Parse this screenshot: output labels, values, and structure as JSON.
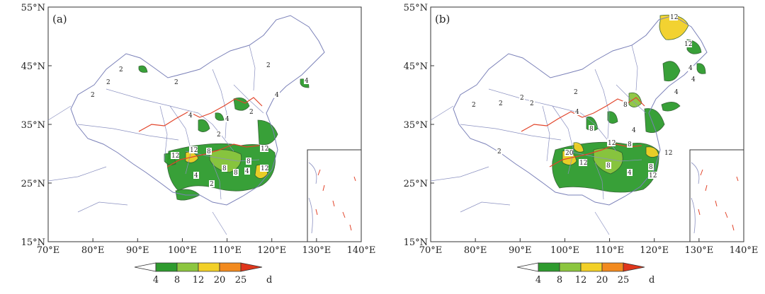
{
  "panels": [
    {
      "id": "a",
      "label": "(a)",
      "x_ticks": [
        "70°E",
        "80°E",
        "90°E",
        "100°E",
        "110°E",
        "120°E",
        "130°E",
        "140°E"
      ],
      "y_ticks": [
        "55°N",
        "45°N",
        "35°N",
        "25°N",
        "15°N"
      ],
      "contour_labels": [
        "2",
        "2",
        "2",
        "2",
        "2",
        "2",
        "2",
        "2",
        "4",
        "4",
        "4",
        "4",
        "4",
        "8",
        "8",
        "8",
        "8",
        "12",
        "12",
        "12",
        "12",
        "4"
      ],
      "colorbar": {
        "ticks": [
          "4",
          "8",
          "12",
          "20",
          "25"
        ],
        "unit": "d"
      }
    },
    {
      "id": "b",
      "label": "(b)",
      "x_ticks": [
        "70°E",
        "80°E",
        "90°E",
        "100°E",
        "110°E",
        "120°E",
        "130°E",
        "140°E"
      ],
      "y_ticks": [
        "55°N",
        "45°N",
        "35°N",
        "25°N",
        "15°N"
      ],
      "contour_labels": [
        "2",
        "2",
        "2",
        "2",
        "2",
        "2",
        "4",
        "4",
        "4",
        "4",
        "4",
        "8",
        "8",
        "8",
        "8",
        "8",
        "12",
        "12",
        "12",
        "12",
        "12",
        "12",
        "20",
        "4"
      ],
      "colorbar": {
        "ticks": [
          "4",
          "8",
          "12",
          "20",
          "25"
        ],
        "unit": "d"
      }
    }
  ],
  "legend_colors": [
    "#ffffff",
    "#2e9b2e",
    "#8cc63f",
    "#f2d027",
    "#f28a1e",
    "#e0361b"
  ]
}
